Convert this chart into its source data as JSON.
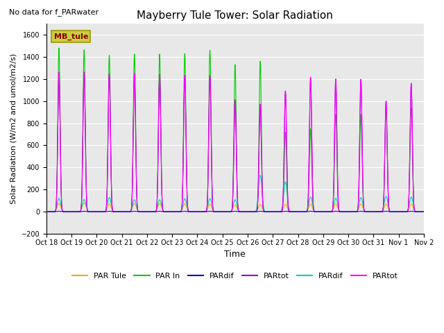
{
  "title": "Mayberry Tule Tower: Solar Radiation",
  "subtitle": "No data for f_PARwater",
  "xlabel": "Time",
  "ylabel": "Solar Radiation (W/m2 and umol/m2/s)",
  "ylim": [
    -200,
    1700
  ],
  "yticks": [
    -200,
    0,
    200,
    400,
    600,
    800,
    1000,
    1200,
    1400,
    1600
  ],
  "bg_color": "#e8e8e8",
  "legend_labels": [
    "PAR Tule",
    "PAR In",
    "PARdif",
    "PARtot",
    "PARdif",
    "PARtot"
  ],
  "legend_colors": [
    "#ffa500",
    "#00cc00",
    "#0000cc",
    "#9900cc",
    "#00cccc",
    "#ff00ff"
  ],
  "box_label": "MB_tule",
  "box_facecolor": "#cccc44",
  "box_edgecolor": "#999900",
  "box_textcolor": "#880000",
  "x_tick_labels": [
    "Oct 18",
    "Oct 19",
    "Oct 20",
    "Oct 21",
    "Oct 22",
    "Oct 23",
    "Oct 24",
    "Oct 25",
    "Oct 26",
    "Oct 27",
    "Oct 28",
    "Oct 29",
    "Oct 30",
    "Oct 31",
    "Nov 1",
    "Nov 2"
  ],
  "n_days": 15,
  "peak_PAR_Tule": [
    75,
    80,
    70,
    75,
    75,
    72,
    68,
    62,
    65,
    68,
    70,
    70,
    70,
    70,
    68
  ],
  "peak_PAR_In": [
    1480,
    1465,
    1415,
    1425,
    1425,
    1430,
    1460,
    1330,
    1360,
    720,
    750,
    880,
    880,
    910,
    940
  ],
  "peak_PARdif_blue": [
    4,
    4,
    4,
    4,
    4,
    4,
    4,
    4,
    4,
    4,
    4,
    4,
    4,
    4,
    4
  ],
  "peak_PARtot_purple": [
    1260,
    1260,
    1235,
    1238,
    1238,
    1228,
    1218,
    1010,
    970,
    1090,
    1210,
    1200,
    1195,
    1000,
    1158
  ],
  "peak_PARdif_cyan": [
    120,
    110,
    128,
    108,
    108,
    118,
    118,
    108,
    330,
    270,
    132,
    122,
    128,
    138,
    132
  ],
  "peak_PARtot_pink": [
    1263,
    1263,
    1248,
    1252,
    1242,
    1232,
    1232,
    1012,
    972,
    1092,
    1218,
    1198,
    1198,
    1002,
    1162
  ],
  "day_start": 0.25,
  "day_end": 0.75
}
